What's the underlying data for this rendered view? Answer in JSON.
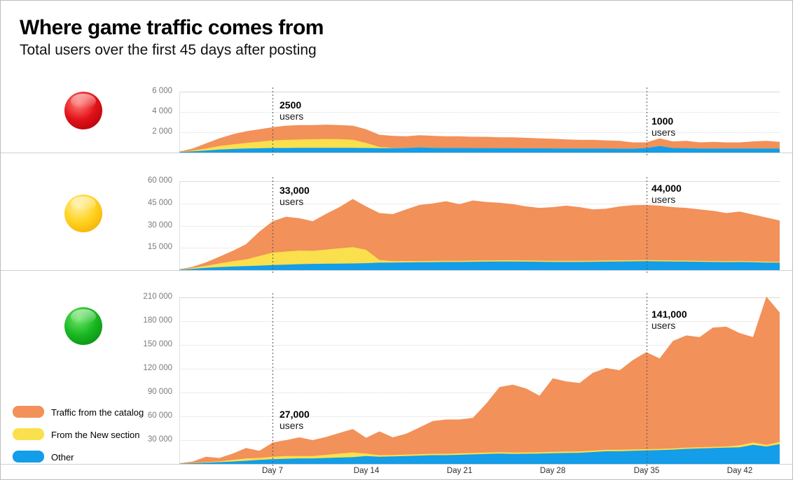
{
  "header": {
    "title": "Where game traffic comes from",
    "subtitle": "Total users over the first 45 days after posting"
  },
  "colors": {
    "catalog": "#F29159",
    "new_section": "#FBE04D",
    "other": "#149DE8",
    "grid": "#DADADA",
    "axis_line": "#CFCFCF",
    "annotation_line": "#595959",
    "tick_label": "#7B7B7B",
    "day_label": "#2E2E2E"
  },
  "legend": {
    "items": [
      {
        "label": "Traffic from the catalog",
        "color_key": "catalog"
      },
      {
        "label": "From the New section",
        "color_key": "new_section"
      },
      {
        "label": "Other",
        "color_key": "other"
      }
    ]
  },
  "x_axis": {
    "labels": [
      {
        "text": "Day 7",
        "day": 7
      },
      {
        "text": "Day 14",
        "day": 14
      },
      {
        "text": "Day 21",
        "day": 21
      },
      {
        "text": "Day 28",
        "day": 28
      },
      {
        "text": "Day 35",
        "day": 35
      },
      {
        "text": "Day 42",
        "day": 42
      }
    ]
  },
  "chart_data": [
    {
      "type": "area",
      "stacked": true,
      "name": "red-rated-game",
      "icon": {
        "name": "red-ball",
        "light": "#FF8177",
        "main": "#E31219",
        "dark": "#9E0005"
      },
      "x_range_days": [
        0,
        45
      ],
      "ymax": 6000,
      "yticks": [
        {
          "value": 6000,
          "label": "6 000"
        },
        {
          "value": 4000,
          "label": "4 000"
        },
        {
          "value": 2000,
          "label": "2 000"
        }
      ],
      "annotations": [
        {
          "day": 7,
          "value": "2500",
          "unit": "users"
        },
        {
          "day": 35,
          "value": "1000",
          "unit": "users"
        }
      ],
      "series": [
        {
          "name": "Other",
          "color_key": "other",
          "values": [
            50,
            120,
            200,
            300,
            350,
            400,
            420,
            450,
            450,
            460,
            460,
            470,
            470,
            460,
            450,
            430,
            430,
            450,
            520,
            470,
            450,
            450,
            440,
            440,
            430,
            430,
            420,
            420,
            410,
            400,
            400,
            400,
            390,
            380,
            380,
            450,
            650,
            450,
            430,
            400,
            400,
            390,
            390,
            400,
            400,
            400
          ]
        },
        {
          "name": "From the New section",
          "color_key": "new_section",
          "values": [
            20,
            80,
            200,
            350,
            450,
            550,
            650,
            750,
            800,
            820,
            850,
            870,
            850,
            800,
            500,
            120,
            30,
            10,
            10,
            10,
            5,
            5,
            5,
            5,
            5,
            5,
            5,
            5,
            5,
            5,
            5,
            5,
            5,
            5,
            5,
            5,
            5,
            5,
            5,
            5,
            5,
            5,
            5,
            5,
            5,
            5
          ]
        },
        {
          "name": "Traffic from the catalog",
          "color_key": "catalog",
          "values": [
            30,
            200,
            500,
            750,
            1000,
            1150,
            1230,
            1300,
            1400,
            1420,
            1390,
            1410,
            1380,
            1390,
            1350,
            1200,
            1190,
            1140,
            1170,
            1170,
            1145,
            1145,
            1105,
            1105,
            1065,
            1065,
            1025,
            975,
            935,
            895,
            845,
            845,
            805,
            765,
            615,
            545,
            745,
            645,
            715,
            595,
            645,
            605,
            605,
            695,
            745,
            645
          ]
        }
      ]
    },
    {
      "type": "area",
      "stacked": true,
      "name": "yellow-rated-game",
      "icon": {
        "name": "yellow-ball",
        "light": "#FFF0A0",
        "main": "#FFD21E",
        "dark": "#F0A000"
      },
      "x_range_days": [
        0,
        45
      ],
      "ymax": 60000,
      "yticks": [
        {
          "value": 60000,
          "label": "60 000"
        },
        {
          "value": 45000,
          "label": "45 000"
        },
        {
          "value": 30000,
          "label": "30 000"
        },
        {
          "value": 15000,
          "label": "15 000"
        }
      ],
      "annotations": [
        {
          "day": 7,
          "value": "33,000",
          "unit": "users"
        },
        {
          "day": 35,
          "value": "44,000",
          "unit": "users"
        }
      ],
      "series": [
        {
          "name": "Other",
          "color_key": "other",
          "values": [
            300,
            800,
            1500,
            2000,
            2400,
            2700,
            3000,
            3400,
            3700,
            4000,
            4200,
            4300,
            4400,
            4500,
            4700,
            5000,
            5100,
            5200,
            5300,
            5400,
            5500,
            5500,
            5600,
            5700,
            5800,
            5800,
            5700,
            5600,
            5500,
            5500,
            5500,
            5600,
            5700,
            5800,
            5900,
            6000,
            5900,
            5800,
            5700,
            5600,
            5500,
            5400,
            5500,
            5300,
            5100,
            5000
          ]
        },
        {
          "name": "From the New section",
          "color_key": "new_section",
          "values": [
            200,
            600,
            1400,
            2500,
            3600,
            4500,
            6500,
            8400,
            8800,
            9200,
            8800,
            9500,
            10300,
            11000,
            9000,
            1800,
            1000,
            900,
            800,
            800,
            800,
            800,
            800,
            800,
            800,
            800,
            800,
            800,
            800,
            800,
            750,
            750,
            750,
            750,
            750,
            700,
            700,
            700,
            700,
            700,
            650,
            650,
            650,
            600,
            600,
            600
          ]
        },
        {
          "name": "Traffic from the catalog",
          "color_key": "catalog",
          "values": [
            100,
            800,
            2300,
            4500,
            7000,
            10300,
            16500,
            21200,
            23500,
            21800,
            20000,
            24200,
            27800,
            32500,
            29300,
            31700,
            31700,
            34900,
            37900,
            38800,
            40200,
            38200,
            40600,
            39500,
            38900,
            37900,
            36500,
            35600,
            36200,
            37200,
            36250,
            34650,
            35050,
            36450,
            37150,
            37300,
            36900,
            36000,
            35600,
            34700,
            33850,
            32450,
            33350,
            31600,
            29800,
            27900
          ]
        }
      ]
    },
    {
      "type": "area",
      "stacked": true,
      "name": "green-rated-game",
      "icon": {
        "name": "green-ball",
        "light": "#71E56A",
        "main": "#18B822",
        "dark": "#087F0F"
      },
      "x_range_days": [
        0,
        45
      ],
      "ymax": 210000,
      "yticks": [
        {
          "value": 210000,
          "label": "210 000"
        },
        {
          "value": 180000,
          "label": "180 000"
        },
        {
          "value": 150000,
          "label": "150 000"
        },
        {
          "value": 120000,
          "label": "120 000"
        },
        {
          "value": 90000,
          "label": "90 000"
        },
        {
          "value": 60000,
          "label": "60 000"
        },
        {
          "value": 30000,
          "label": "30 000"
        }
      ],
      "annotations": [
        {
          "day": 7,
          "value": "27,000",
          "unit": "users"
        },
        {
          "day": 35,
          "value": "141,000",
          "unit": "users"
        }
      ],
      "series": [
        {
          "name": "Other",
          "color_key": "other",
          "values": [
            300,
            800,
            1500,
            2200,
            3000,
            4000,
            5000,
            6000,
            6500,
            7000,
            7000,
            7500,
            8000,
            8500,
            10000,
            9000,
            9500,
            10000,
            10500,
            11000,
            11000,
            11500,
            12000,
            12500,
            13000,
            12500,
            12800,
            13000,
            13500,
            13800,
            14000,
            15000,
            16000,
            16000,
            16500,
            17000,
            17500,
            18000,
            19000,
            19500,
            20000,
            20500,
            21000,
            24000,
            22000,
            25000
          ]
        },
        {
          "name": "From the New section",
          "color_key": "new_section",
          "values": [
            100,
            300,
            700,
            1000,
            2000,
            3000,
            2500,
            3000,
            3500,
            3000,
            3000,
            4000,
            5000,
            6000,
            3000,
            2000,
            1800,
            1800,
            1800,
            1800,
            1800,
            1800,
            1800,
            1800,
            1800,
            1800,
            1800,
            1800,
            1800,
            1800,
            1800,
            1800,
            1800,
            1800,
            1800,
            1500,
            1500,
            1500,
            1500,
            1500,
            1500,
            1500,
            2500,
            3000,
            2000,
            2500
          ]
        },
        {
          "name": "Traffic from the catalog",
          "color_key": "catalog",
          "values": [
            200,
            1900,
            6800,
            4300,
            8000,
            13000,
            9000,
            18000,
            20000,
            23500,
            20000,
            22500,
            26000,
            29500,
            20000,
            30000,
            22200,
            26200,
            33700,
            41200,
            43200,
            42700,
            44200,
            61700,
            82200,
            85700,
            80400,
            71200,
            92700,
            88400,
            86200,
            98200,
            103200,
            100200,
            112700,
            122500,
            114000,
            135500,
            141500,
            139000,
            150500,
            151000,
            141500,
            133000,
            187000,
            163500
          ]
        }
      ]
    }
  ]
}
